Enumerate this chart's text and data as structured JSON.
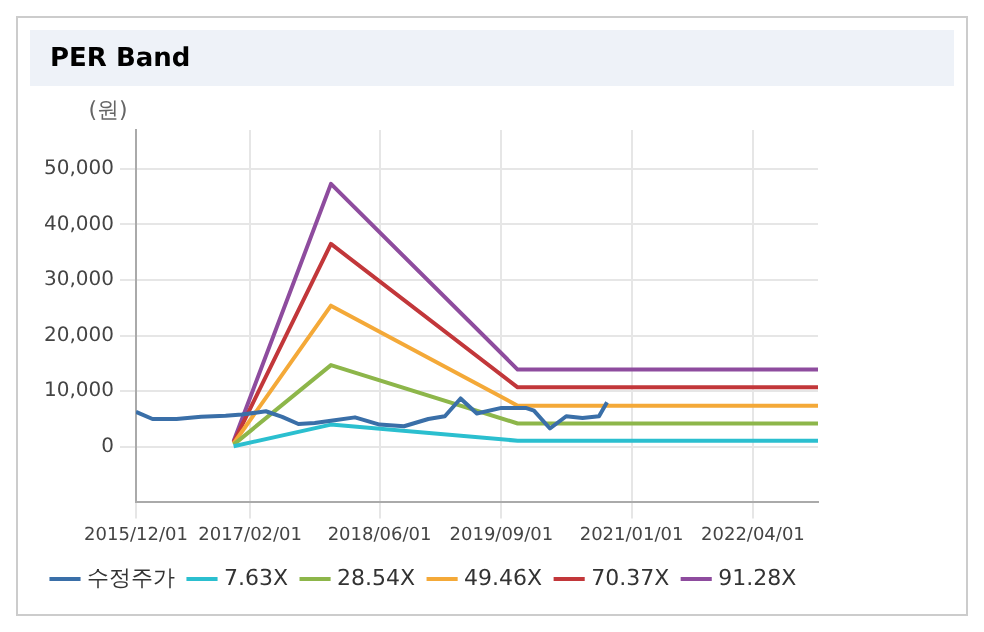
{
  "chart_data": {
    "type": "line",
    "title": "PER Band",
    "ylabel": "(원)",
    "ylim": [
      -10000,
      57000
    ],
    "yticks": [
      0,
      {
        "value": 10000,
        "label": "10,000"
      },
      {
        "value": 20000,
        "label": "20,000"
      },
      {
        "value": 30000,
        "label": "30,000"
      },
      {
        "value": 40000,
        "label": "40,000"
      },
      {
        "value": 50000,
        "label": "50,000"
      }
    ],
    "xlim": [
      "2015-12-01",
      "2022-12-01"
    ],
    "xticks": [
      {
        "value": "2015-12-01",
        "label": "2015/12/01"
      },
      {
        "value": "2017-02-01",
        "label": "2017/02/01"
      },
      {
        "value": "2018-06-01",
        "label": "2018/06/01"
      },
      {
        "value": "2019-09-01",
        "label": "2019/09/01"
      },
      {
        "value": "2021-01-01",
        "label": "2021/01/01"
      },
      {
        "value": "2022-04-01",
        "label": "2022/04/01"
      }
    ],
    "grid": true,
    "legend": "bottom",
    "marker": "none",
    "line_style": "solid",
    "series": [
      {
        "name": "수정주가",
        "color": "#3a6fa8",
        "x": [
          "2015-12-01",
          "2016-02-01",
          "2016-05-01",
          "2016-08-01",
          "2016-11-01",
          "2017-01-01",
          "2017-04-01",
          "2017-06-01",
          "2017-08-01",
          "2017-10-01",
          "2017-12-01",
          "2018-03-01",
          "2018-06-01",
          "2018-09-01",
          "2018-12-01",
          "2019-02-01",
          "2019-04-01",
          "2019-06-01",
          "2019-09-01",
          "2019-12-01",
          "2020-01-01",
          "2020-03-01",
          "2020-05-01",
          "2020-07-01",
          "2020-09-01",
          "2020-10-01"
        ],
        "values": [
          6300,
          5000,
          5000,
          5400,
          5600,
          5800,
          6400,
          5400,
          4100,
          4300,
          4700,
          5300,
          4000,
          3700,
          5000,
          5500,
          8700,
          6000,
          7000,
          7000,
          6500,
          3300,
          5500,
          5200,
          5500,
          8000
        ]
      },
      {
        "name": "7.63X",
        "color": "#2bbfcf",
        "x": [
          "2016-12-01",
          "2017-12-01",
          "2019-11-01",
          "2022-12-01"
        ],
        "values": [
          100,
          4000,
          1100,
          1100
        ]
      },
      {
        "name": "28.54X",
        "color": "#8db64a",
        "x": [
          "2016-12-01",
          "2017-12-01",
          "2019-11-01",
          "2022-12-01"
        ],
        "values": [
          400,
          14700,
          4200,
          4200
        ]
      },
      {
        "name": "49.46X",
        "color": "#f4a938",
        "x": [
          "2016-12-01",
          "2017-12-01",
          "2019-11-01",
          "2022-12-01"
        ],
        "values": [
          600,
          25400,
          7400,
          7400
        ]
      },
      {
        "name": "70.37X",
        "color": "#c2373a",
        "x": [
          "2016-12-01",
          "2017-12-01",
          "2019-11-01",
          "2022-12-01"
        ],
        "values": [
          800,
          36500,
          10700,
          10700
        ]
      },
      {
        "name": "91.28X",
        "color": "#8e4c9e",
        "x": [
          "2016-12-01",
          "2017-12-01",
          "2019-11-01",
          "2022-12-01"
        ],
        "values": [
          1000,
          47300,
          13900,
          13900
        ]
      }
    ]
  }
}
